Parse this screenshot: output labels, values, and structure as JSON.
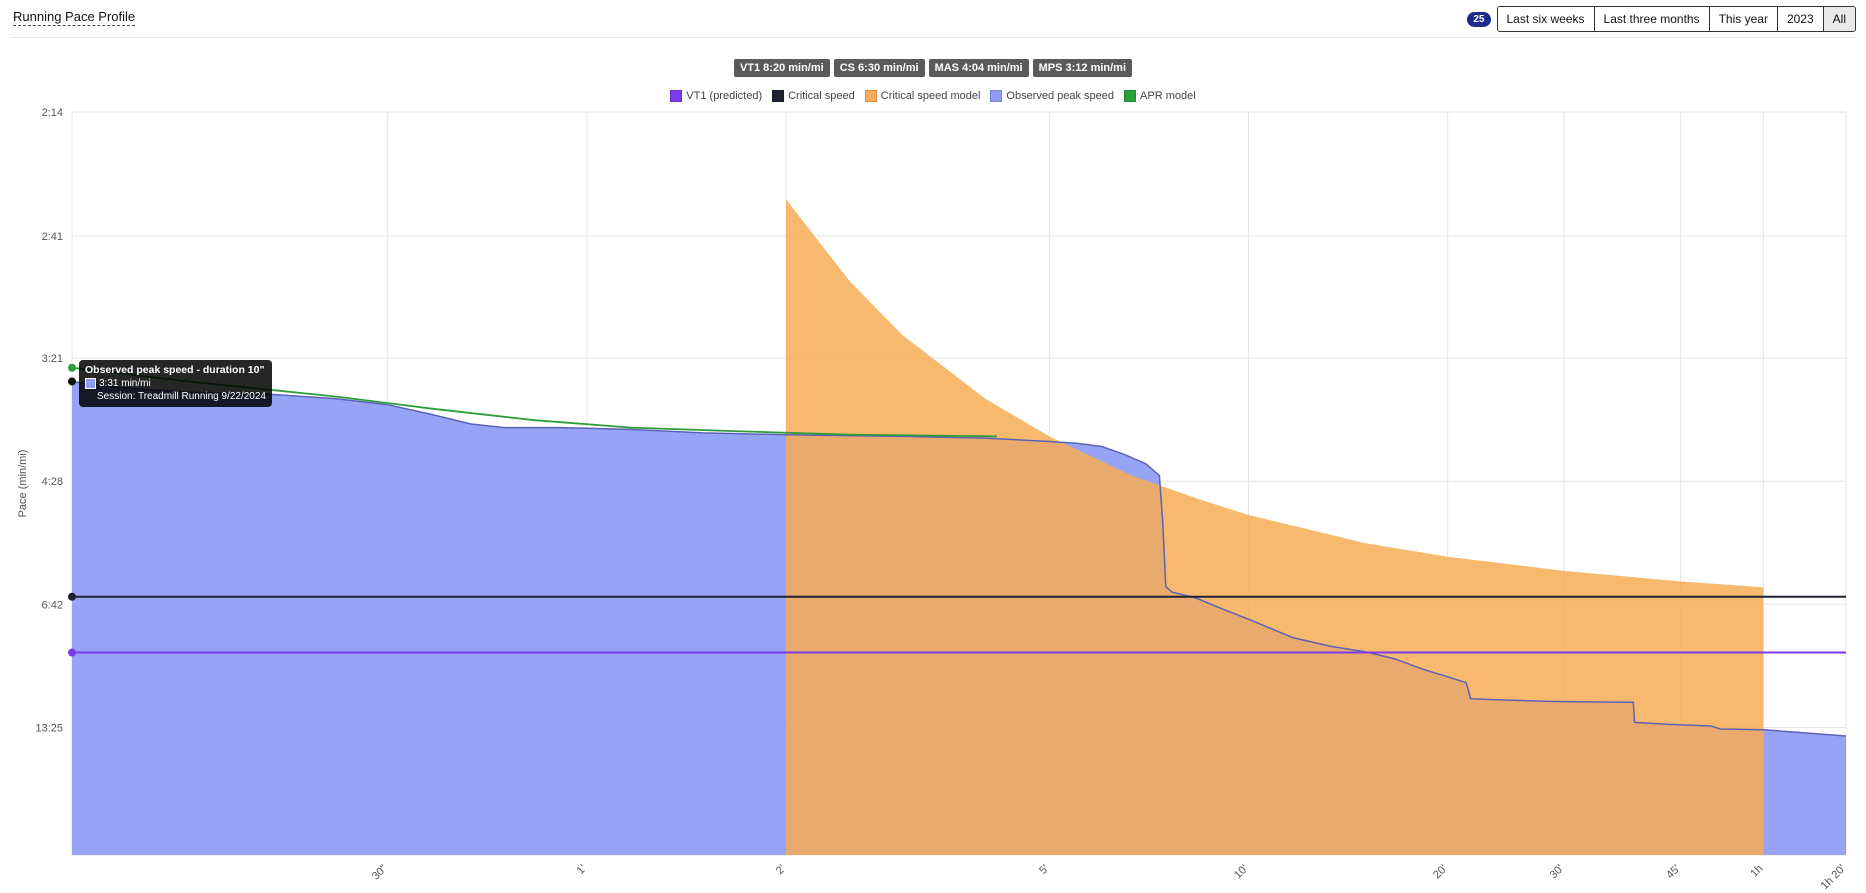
{
  "header": {
    "title": "Running Pace Profile",
    "count": "25",
    "filters": [
      "Last six weeks",
      "Last three months",
      "This year",
      "2023",
      "All"
    ],
    "active_filter": "All"
  },
  "chips": [
    "VT1 8:20 min/mi",
    "CS 6:30 min/mi",
    "MAS 4:04 min/mi",
    "MPS 3:12 min/mi"
  ],
  "legend": [
    {
      "label": "VT1 (predicted)",
      "color": "#7c3aed"
    },
    {
      "label": "Critical speed",
      "color": "#1f2233"
    },
    {
      "label": "Critical speed model",
      "color": "#f6ad55"
    },
    {
      "label": "Observed peak speed",
      "color": "#8e9cf5"
    },
    {
      "label": "APR model",
      "color": "#2e9e3a"
    }
  ],
  "tooltip": {
    "title": "Observed peak speed - duration 10\"",
    "value": "3:31 min/mi",
    "session": "Session: Treadmill Running 9/22/2024"
  },
  "chart_data": {
    "type": "area",
    "ylabel": "Pace (min/mi)",
    "xlabel": "",
    "x_scale": "log",
    "y_scale": "reciprocal (speed-linear)",
    "y_ticks": [
      "2:14",
      "2:41",
      "3:21",
      "4:28",
      "6:42",
      "13:25"
    ],
    "x_ticks": [
      {
        "label": "30\"",
        "sec": 30
      },
      {
        "label": "1'",
        "sec": 60
      },
      {
        "label": "2'",
        "sec": 120
      },
      {
        "label": "5'",
        "sec": 300
      },
      {
        "label": "10'",
        "sec": 600
      },
      {
        "label": "20'",
        "sec": 1200
      },
      {
        "label": "30'",
        "sec": 1800
      },
      {
        "label": "45'",
        "sec": 2700
      },
      {
        "label": "1h",
        "sec": 3600
      },
      {
        "label": "1h 20'",
        "sec": 4800
      }
    ],
    "xlim_sec": [
      10,
      4800
    ],
    "grid": true,
    "legend_position": "top",
    "series": [
      {
        "name": "Observed peak speed",
        "color": "#8e9cf5",
        "points": [
          [
            10,
            "3:31"
          ],
          [
            12,
            "3:34"
          ],
          [
            15,
            "3:36"
          ],
          [
            20,
            "3:37"
          ],
          [
            25,
            "3:39"
          ],
          [
            30,
            "3:42"
          ],
          [
            35,
            "3:47"
          ],
          [
            40,
            "3:52"
          ],
          [
            45,
            "3:54"
          ],
          [
            55,
            "3:54"
          ],
          [
            70,
            "3:55"
          ],
          [
            90,
            "3:57"
          ],
          [
            120,
            "3:58"
          ],
          [
            180,
            "3:59"
          ],
          [
            240,
            "4:00"
          ],
          [
            300,
            "4:02"
          ],
          [
            330,
            "4:03"
          ],
          [
            360,
            "4:05"
          ],
          [
            390,
            "4:10"
          ],
          [
            420,
            "4:16"
          ],
          [
            440,
            "4:24"
          ],
          [
            445,
            "5:00"
          ],
          [
            450,
            "6:15"
          ],
          [
            460,
            "6:23"
          ],
          [
            500,
            "6:32"
          ],
          [
            540,
            "6:47"
          ],
          [
            600,
            "7:08"
          ],
          [
            700,
            "7:45"
          ],
          [
            800,
            "8:05"
          ],
          [
            900,
            "8:18"
          ],
          [
            1000,
            "8:37"
          ],
          [
            1100,
            "9:06"
          ],
          [
            1200,
            "9:30"
          ],
          [
            1280,
            "9:50"
          ],
          [
            1300,
            "10:52"
          ],
          [
            1400,
            "10:56"
          ],
          [
            1700,
            "11:04"
          ],
          [
            2200,
            "11:08"
          ],
          [
            2290,
            "11:08"
          ],
          [
            2300,
            "12:53"
          ],
          [
            2600,
            "13:05"
          ],
          [
            3000,
            "13:15"
          ],
          [
            3100,
            "13:35"
          ],
          [
            3600,
            "13:40"
          ],
          [
            4800,
            "14:25"
          ]
        ]
      },
      {
        "name": "Critical speed model",
        "color": "#f6ad55",
        "points": [
          [
            120,
            "2:32"
          ],
          [
            150,
            "2:54"
          ],
          [
            180,
            "3:12"
          ],
          [
            240,
            "3:39"
          ],
          [
            300,
            "3:59"
          ],
          [
            400,
            "4:24"
          ],
          [
            500,
            "4:41"
          ],
          [
            600,
            "4:55"
          ],
          [
            900,
            "5:22"
          ],
          [
            1200,
            "5:37"
          ],
          [
            1800,
            "5:54"
          ],
          [
            2700,
            "6:08"
          ],
          [
            3600,
            "6:16"
          ]
        ]
      },
      {
        "name": "APR model",
        "color": "#2e9e3a",
        "points": [
          [
            10,
            "3:25"
          ],
          [
            15,
            "3:31"
          ],
          [
            25,
            "3:38"
          ],
          [
            35,
            "3:44"
          ],
          [
            50,
            "3:50"
          ],
          [
            70,
            "3:54"
          ],
          [
            100,
            "3:56"
          ],
          [
            150,
            "3:58"
          ],
          [
            250,
            "3:59"
          ]
        ]
      },
      {
        "name": "Critical speed",
        "color": "#1f2233",
        "constant": "6:30"
      },
      {
        "name": "VT1 (predicted)",
        "color": "#7c3aed",
        "constant": "8:20"
      }
    ]
  }
}
